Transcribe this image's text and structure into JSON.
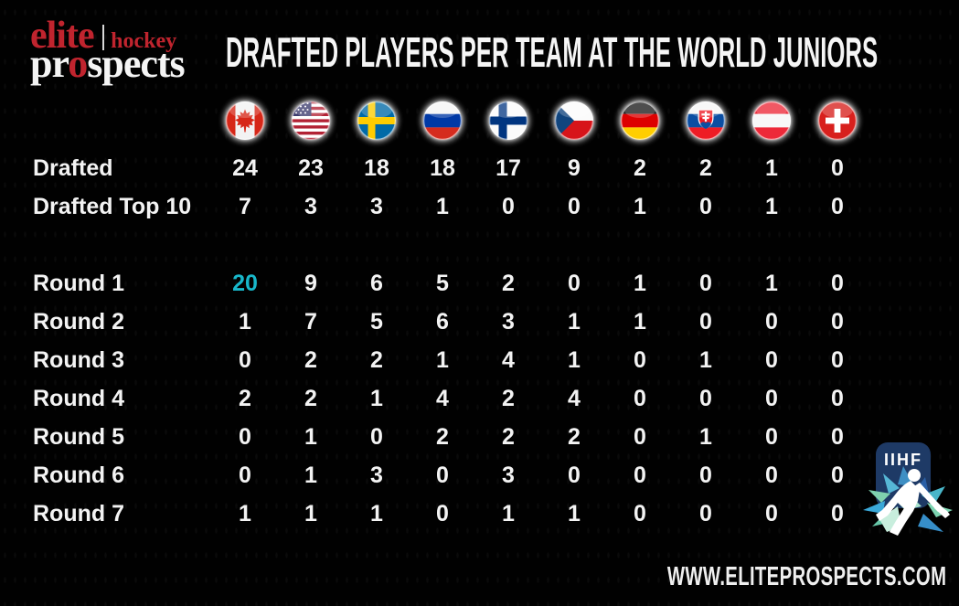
{
  "brand": {
    "elite": "elite",
    "hockey": "hockey",
    "prospects_pr": "pr",
    "prospects_o": "o",
    "prospects_rest": "spects",
    "red": "#c0242e"
  },
  "title": "DRAFTED PLAYERS PER TEAM AT THE WORLD JUNIORS",
  "chart_data": {
    "type": "table",
    "title": "Drafted Players Per Team at the World Juniors",
    "categories": [
      "Canada",
      "USA",
      "Sweden",
      "Russia",
      "Finland",
      "Czech Republic",
      "Germany",
      "Slovakia",
      "Austria",
      "Switzerland"
    ],
    "series": [
      {
        "name": "Drafted",
        "values": [
          24,
          23,
          18,
          18,
          17,
          9,
          2,
          2,
          1,
          0
        ]
      },
      {
        "name": "Drafted Top 10",
        "values": [
          7,
          3,
          3,
          1,
          0,
          0,
          1,
          0,
          1,
          0
        ]
      },
      {
        "name": "Round 1",
        "values": [
          20,
          9,
          6,
          5,
          2,
          0,
          1,
          0,
          1,
          0
        ]
      },
      {
        "name": "Round 2",
        "values": [
          1,
          7,
          5,
          6,
          3,
          1,
          1,
          0,
          0,
          0
        ]
      },
      {
        "name": "Round 3",
        "values": [
          0,
          2,
          2,
          1,
          4,
          1,
          0,
          1,
          0,
          0
        ]
      },
      {
        "name": "Round 4",
        "values": [
          2,
          2,
          1,
          4,
          2,
          4,
          0,
          0,
          0,
          0
        ]
      },
      {
        "name": "Round 5",
        "values": [
          0,
          1,
          0,
          2,
          2,
          2,
          0,
          1,
          0,
          0
        ]
      },
      {
        "name": "Round 6",
        "values": [
          0,
          1,
          3,
          0,
          3,
          0,
          0,
          0,
          0,
          0
        ]
      },
      {
        "name": "Round 7",
        "values": [
          1,
          1,
          1,
          0,
          1,
          1,
          0,
          0,
          0,
          0
        ]
      }
    ],
    "annotations": [
      {
        "text": "20",
        "note": "Canada Round 1 value highlighted in cyan"
      }
    ]
  },
  "table": {
    "spacer_after": 1,
    "highlight": {
      "series": 2,
      "col": 0,
      "color": "#18b7ca"
    }
  },
  "iihf": {
    "label": "IIHF",
    "badge_color": "#1e3a66"
  },
  "footer": {
    "url": "WWW.ELITEPROSPECTS.COM"
  }
}
